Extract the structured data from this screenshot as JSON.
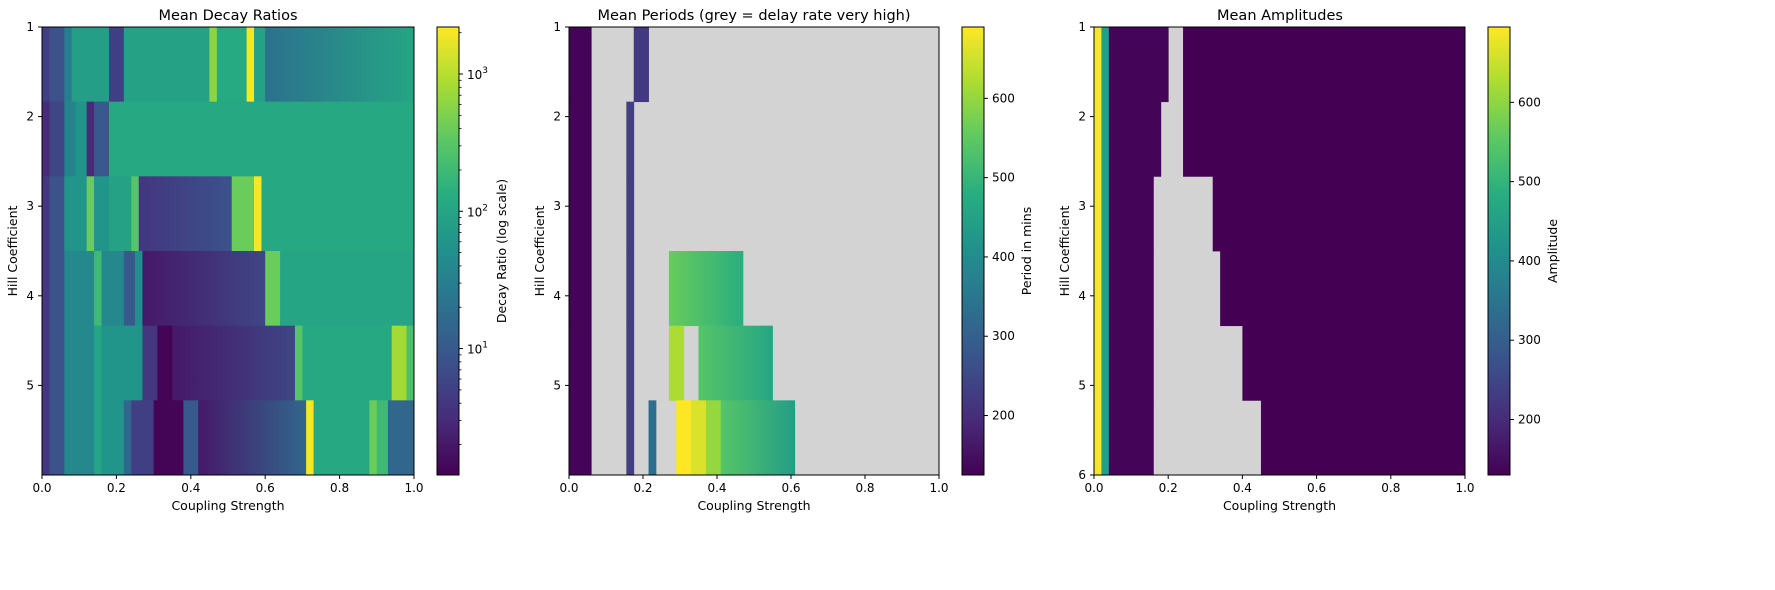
{
  "chart_data": [
    {
      "type": "heatmap",
      "title": "Mean Decay Ratios",
      "xlabel": "Coupling Strength",
      "ylabel": "Hill Coefficient",
      "xlim": [
        0.0,
        1.0
      ],
      "ylim": [
        1,
        6
      ],
      "x_ticks": [
        "0.0",
        "0.2",
        "0.4",
        "0.6",
        "0.8",
        "1.0"
      ],
      "y_ticks": [
        "1",
        "2",
        "3",
        "4",
        "5"
      ],
      "colormap": "viridis",
      "colorbar": {
        "label": "Decay Ratio (log scale)",
        "scale": "log",
        "range": [
          1.2,
          2200
        ],
        "ticks": [
          {
            "base": "10",
            "exp": "1",
            "value": 10
          },
          {
            "base": "10",
            "exp": "2",
            "value": 100
          },
          {
            "base": "10",
            "exp": "3",
            "value": 1000
          }
        ]
      },
      "rows": [
        {
          "hill": "1",
          "segments": [
            [
              0.0,
              0.02,
              5
            ],
            [
              0.02,
              0.06,
              8
            ],
            [
              0.06,
              0.08,
              30
            ],
            [
              0.08,
              0.18,
              80
            ],
            [
              0.18,
              0.22,
              5
            ],
            [
              0.22,
              0.45,
              90
            ],
            [
              0.45,
              0.47,
              600
            ],
            [
              0.47,
              0.55,
              120
            ],
            [
              0.55,
              0.57,
              2000
            ],
            [
              0.57,
              0.6,
              90
            ],
            [
              0.6,
              1.0,
              [
                20,
                100
              ]
            ]
          ]
        },
        {
          "hill": "2",
          "segments": [
            [
              0.0,
              0.02,
              3
            ],
            [
              0.02,
              0.06,
              6
            ],
            [
              0.06,
              0.09,
              35
            ],
            [
              0.09,
              0.12,
              60
            ],
            [
              0.12,
              0.14,
              3
            ],
            [
              0.14,
              0.18,
              10
            ],
            [
              0.18,
              1.0,
              110
            ]
          ]
        },
        {
          "hill": "3",
          "segments": [
            [
              0.0,
              0.02,
              4
            ],
            [
              0.02,
              0.06,
              8
            ],
            [
              0.06,
              0.12,
              60
            ],
            [
              0.12,
              0.14,
              400
            ],
            [
              0.14,
              0.18,
              60
            ],
            [
              0.18,
              0.24,
              90
            ],
            [
              0.24,
              0.26,
              300
            ],
            [
              0.26,
              0.51,
              [
                4,
                8
              ]
            ],
            [
              0.51,
              0.57,
              400
            ],
            [
              0.57,
              0.59,
              2000
            ],
            [
              0.59,
              1.0,
              110
            ]
          ]
        },
        {
          "hill": "4",
          "segments": [
            [
              0.0,
              0.02,
              4
            ],
            [
              0.02,
              0.06,
              8
            ],
            [
              0.06,
              0.14,
              40
            ],
            [
              0.14,
              0.16,
              200
            ],
            [
              0.16,
              0.22,
              40
            ],
            [
              0.22,
              0.25,
              10
            ],
            [
              0.25,
              0.27,
              50
            ],
            [
              0.27,
              0.6,
              [
                2,
                6
              ]
            ],
            [
              0.6,
              0.64,
              400
            ],
            [
              0.64,
              1.0,
              100
            ]
          ]
        },
        {
          "hill": "5",
          "segments": [
            [
              0.0,
              0.02,
              4
            ],
            [
              0.02,
              0.06,
              8
            ],
            [
              0.06,
              0.14,
              40
            ],
            [
              0.14,
              0.16,
              100
            ],
            [
              0.16,
              0.27,
              60
            ],
            [
              0.27,
              0.31,
              4
            ],
            [
              0.31,
              0.35,
              1.3
            ],
            [
              0.35,
              0.68,
              [
                2,
                6
              ]
            ],
            [
              0.68,
              0.7,
              300
            ],
            [
              0.7,
              0.94,
              110
            ],
            [
              0.94,
              0.98,
              800
            ],
            [
              0.98,
              1.0,
              250
            ]
          ]
        },
        {
          "hill": "6",
          "segments": [
            [
              0.0,
              0.02,
              4
            ],
            [
              0.02,
              0.06,
              8
            ],
            [
              0.06,
              0.14,
              40
            ],
            [
              0.14,
              0.16,
              100
            ],
            [
              0.16,
              0.22,
              60
            ],
            [
              0.22,
              0.24,
              15
            ],
            [
              0.24,
              0.3,
              5
            ],
            [
              0.3,
              0.38,
              1.3
            ],
            [
              0.38,
              0.42,
              10
            ],
            [
              0.42,
              0.71,
              [
                2,
                15
              ]
            ],
            [
              0.71,
              0.73,
              2000
            ],
            [
              0.73,
              0.88,
              110
            ],
            [
              0.88,
              0.9,
              400
            ],
            [
              0.9,
              0.93,
              200
            ],
            [
              0.93,
              1.0,
              15
            ]
          ]
        }
      ]
    },
    {
      "type": "heatmap",
      "title": "Mean Periods (grey = delay rate very high)",
      "xlabel": "Coupling Strength",
      "ylabel": "Hill Coefficient",
      "xlim": [
        0.0,
        1.0
      ],
      "ylim": [
        1,
        6
      ],
      "x_ticks": [
        "0.0",
        "0.2",
        "0.4",
        "0.6",
        "0.8",
        "1.0"
      ],
      "y_ticks": [
        "1",
        "2",
        "3",
        "4",
        "5"
      ],
      "colormap": "viridis",
      "missing_color": "#d3d3d3",
      "colorbar": {
        "label": "Period in mins",
        "scale": "linear",
        "range": [
          125,
          690
        ],
        "ticks": [
          "200",
          "300",
          "400",
          "500",
          "600"
        ]
      },
      "rows": [
        {
          "hill": "1",
          "segments": [
            [
              0.0,
              0.06,
              130
            ],
            [
              0.06,
              0.175,
              null
            ],
            [
              0.175,
              0.215,
              220
            ],
            [
              0.215,
              1.0,
              null
            ]
          ]
        },
        {
          "hill": "2",
          "segments": [
            [
              0.0,
              0.06,
              130
            ],
            [
              0.06,
              0.155,
              null
            ],
            [
              0.155,
              0.175,
              230
            ],
            [
              0.175,
              1.0,
              null
            ]
          ]
        },
        {
          "hill": "3",
          "segments": [
            [
              0.0,
              0.06,
              130
            ],
            [
              0.06,
              0.155,
              null
            ],
            [
              0.155,
              0.175,
              230
            ],
            [
              0.175,
              1.0,
              null
            ]
          ]
        },
        {
          "hill": "4",
          "segments": [
            [
              0.0,
              0.06,
              130
            ],
            [
              0.06,
              0.155,
              null
            ],
            [
              0.155,
              0.175,
              230
            ],
            [
              0.175,
              0.27,
              null
            ],
            [
              0.27,
              0.47,
              [
                560,
                480
              ]
            ],
            [
              0.47,
              1.0,
              null
            ]
          ]
        },
        {
          "hill": "5",
          "segments": [
            [
              0.0,
              0.06,
              130
            ],
            [
              0.06,
              0.155,
              null
            ],
            [
              0.155,
              0.175,
              230
            ],
            [
              0.175,
              0.27,
              null
            ],
            [
              0.27,
              0.31,
              620
            ],
            [
              0.31,
              0.35,
              null
            ],
            [
              0.35,
              0.55,
              [
                540,
                460
              ]
            ],
            [
              0.55,
              1.0,
              null
            ]
          ]
        },
        {
          "hill": "6",
          "segments": [
            [
              0.0,
              0.06,
              130
            ],
            [
              0.06,
              0.155,
              null
            ],
            [
              0.155,
              0.175,
              230
            ],
            [
              0.175,
              0.215,
              null
            ],
            [
              0.215,
              0.235,
              330
            ],
            [
              0.235,
              0.29,
              null
            ],
            [
              0.29,
              0.33,
              690
            ],
            [
              0.33,
              0.37,
              660
            ],
            [
              0.37,
              0.41,
              600
            ],
            [
              0.41,
              0.61,
              [
                540,
                440
              ]
            ],
            [
              0.61,
              1.0,
              null
            ]
          ]
        }
      ]
    },
    {
      "type": "heatmap",
      "title": "Mean Amplitudes",
      "xlabel": "Coupling Strength",
      "ylabel": "Hill Coefficient",
      "xlim": [
        0.0,
        1.0
      ],
      "ylim": [
        1,
        6
      ],
      "x_ticks": [
        "0.0",
        "0.2",
        "0.4",
        "0.6",
        "0.8",
        "1.0"
      ],
      "y_ticks": [
        "1",
        "2",
        "3",
        "4",
        "5",
        "6"
      ],
      "colormap": "viridis",
      "missing_color": "#d3d3d3",
      "colorbar": {
        "label": "Amplitude",
        "scale": "linear",
        "range": [
          130,
          695
        ],
        "ticks": [
          "200",
          "300",
          "400",
          "500",
          "600"
        ]
      },
      "rows": [
        {
          "hill": "1",
          "segments": [
            [
              0.0,
              0.02,
              690
            ],
            [
              0.02,
              0.04,
              450
            ],
            [
              0.04,
              0.2,
              135
            ],
            [
              0.2,
              0.24,
              null
            ],
            [
              0.24,
              1.0,
              130
            ]
          ]
        },
        {
          "hill": "2",
          "segments": [
            [
              0.0,
              0.02,
              690
            ],
            [
              0.02,
              0.04,
              450
            ],
            [
              0.04,
              0.18,
              135
            ],
            [
              0.18,
              0.24,
              null
            ],
            [
              0.24,
              1.0,
              130
            ]
          ]
        },
        {
          "hill": "3",
          "segments": [
            [
              0.0,
              0.02,
              690
            ],
            [
              0.02,
              0.04,
              450
            ],
            [
              0.04,
              0.16,
              135
            ],
            [
              0.16,
              0.32,
              null
            ],
            [
              0.32,
              1.0,
              130
            ]
          ]
        },
        {
          "hill": "4",
          "segments": [
            [
              0.0,
              0.02,
              690
            ],
            [
              0.02,
              0.04,
              450
            ],
            [
              0.04,
              0.16,
              135
            ],
            [
              0.16,
              0.34,
              null
            ],
            [
              0.34,
              1.0,
              130
            ]
          ]
        },
        {
          "hill": "5",
          "segments": [
            [
              0.0,
              0.02,
              690
            ],
            [
              0.02,
              0.04,
              450
            ],
            [
              0.04,
              0.16,
              135
            ],
            [
              0.16,
              0.4,
              null
            ],
            [
              0.4,
              1.0,
              130
            ]
          ]
        },
        {
          "hill": "6",
          "segments": [
            [
              0.0,
              0.02,
              690
            ],
            [
              0.02,
              0.04,
              450
            ],
            [
              0.04,
              0.16,
              135
            ],
            [
              0.16,
              0.45,
              null
            ],
            [
              0.45,
              1.0,
              130
            ]
          ]
        }
      ]
    }
  ]
}
